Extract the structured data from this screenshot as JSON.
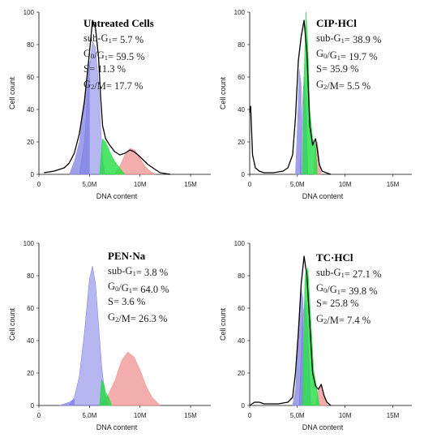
{
  "chart_data": [
    {
      "type": "area",
      "title": "Untreated Cells",
      "xlabel": "DNA content",
      "ylabel": "Cell count",
      "xlim": [
        0,
        17000000
      ],
      "ylim": [
        0,
        100
      ],
      "xticks": [
        "0",
        "5,0M",
        "10M",
        "15M"
      ],
      "yticks": [
        "0",
        "20",
        "40",
        "60",
        "80",
        "100"
      ],
      "stats": [
        {
          "pre": "sub-G",
          "sub": "1",
          "post": "= 5.7 %"
        },
        {
          "pre": "G",
          "sub": "0",
          "mid": "/G",
          "sub2": "1",
          "post": "= 59.5 %"
        },
        {
          "pre": "S= 11.3 %"
        },
        {
          "pre": "G",
          "sub": "2",
          "post": "/M= 17.7 %"
        }
      ],
      "colors": {
        "subg1": "#8e8ee6",
        "g0g1": "#7a7ae6",
        "s": "#22dd44",
        "g2m": "#f08a8a"
      },
      "series": [
        {
          "key": "histogram",
          "x": [
            0.5,
            1.5,
            2.5,
            3.0,
            3.5,
            4.0,
            4.5,
            5.0,
            5.3,
            5.6,
            5.9,
            6.1,
            6.3,
            6.6,
            7.0,
            7.5,
            8.0,
            8.5,
            9.0,
            9.4,
            9.8,
            10.3,
            10.8,
            11.5,
            12.0,
            12.5,
            13.0
          ],
          "y": [
            1,
            2,
            4,
            7,
            13,
            25,
            45,
            75,
            95,
            90,
            72,
            48,
            30,
            22,
            18,
            14,
            12,
            13,
            15,
            14,
            12,
            9,
            6,
            3,
            1,
            0.5,
            0
          ]
        },
        {
          "key": "sub-g1",
          "x": [
            3.0,
            3.5,
            4.0,
            4.5,
            4.8,
            5.0
          ],
          "y": [
            0,
            8,
            20,
            45,
            60,
            70
          ]
        },
        {
          "key": "g0g1",
          "x": [
            4.0,
            4.5,
            5.0,
            5.3,
            5.6,
            5.9,
            6.1,
            6.3,
            6.5
          ],
          "y": [
            0,
            20,
            65,
            82,
            78,
            55,
            30,
            10,
            0
          ]
        },
        {
          "key": "s-phase",
          "x": [
            6.0,
            6.3,
            6.6,
            7.0,
            7.5,
            8.0,
            8.5
          ],
          "y": [
            0,
            22,
            20,
            14,
            8,
            4,
            0
          ]
        },
        {
          "key": "g2m",
          "x": [
            7.5,
            8.0,
            8.5,
            9.0,
            9.5,
            10.0,
            10.5,
            11.0,
            11.5
          ],
          "y": [
            0,
            5,
            12,
            16,
            15,
            10,
            5,
            2,
            0
          ]
        }
      ]
    },
    {
      "type": "area",
      "title": "CIP·HCl",
      "xlabel": "DNA content",
      "ylabel": "Cell count",
      "xlim": [
        0,
        17000000
      ],
      "ylim": [
        0,
        100
      ],
      "xticks": [
        "0",
        "5,0M",
        "10M",
        "15M"
      ],
      "yticks": [
        "0",
        "20",
        "40",
        "60",
        "80",
        "100"
      ],
      "stats": [
        {
          "pre": "sub-G",
          "sub": "1",
          "post": "= 38.9 %"
        },
        {
          "pre": "G",
          "sub": "0",
          "mid": "/G",
          "sub2": "1",
          "post": "= 19.7 %"
        },
        {
          "pre": "S= 35.9 %"
        },
        {
          "pre": "G",
          "sub": "2",
          "post": "/M= 5.5 %"
        }
      ],
      "colors": {
        "subg1": "#8e8ee6",
        "g0g1": "#7a7ae6",
        "s": "#22dd44",
        "g2m": "#f08a8a"
      },
      "series": [
        {
          "key": "histogram",
          "x": [
            0,
            0.1,
            0.3,
            0.6,
            1.0,
            1.5,
            2.0,
            2.5,
            3.0,
            3.5,
            4.0,
            4.5,
            4.8,
            5.1,
            5.4,
            5.7,
            6.0,
            6.3,
            6.6,
            6.9,
            7.1,
            7.3,
            7.6,
            8.0,
            8.5
          ],
          "y": [
            38,
            42,
            12,
            4,
            2,
            1,
            1,
            1,
            1.5,
            2,
            4,
            12,
            35,
            70,
            85,
            95,
            75,
            30,
            18,
            22,
            15,
            6,
            2,
            1,
            0
          ]
        },
        {
          "key": "sub-g1",
          "x": [
            4.8,
            5.0,
            5.2,
            5.4
          ],
          "y": [
            0,
            30,
            65,
            55
          ]
        },
        {
          "key": "g0g1",
          "x": [
            5.3,
            5.5,
            5.7,
            5.9,
            6.1
          ],
          "y": [
            0,
            40,
            60,
            40,
            0
          ]
        },
        {
          "key": "s-phase",
          "x": [
            5.5,
            5.7,
            5.9,
            6.1,
            6.3,
            6.6,
            6.9,
            7.1
          ],
          "y": [
            0,
            60,
            100,
            80,
            40,
            22,
            18,
            0
          ]
        },
        {
          "key": "g2m",
          "x": [
            6.7,
            6.9,
            7.1,
            7.3,
            7.5
          ],
          "y": [
            0,
            18,
            20,
            8,
            0
          ]
        }
      ]
    },
    {
      "type": "area",
      "title": "PEN·Na",
      "xlabel": "DNA content",
      "ylabel": "Cell count",
      "xlim": [
        0,
        17000000
      ],
      "ylim": [
        0,
        100
      ],
      "xticks": [
        "0",
        "5,0M",
        "10M",
        "15M"
      ],
      "yticks": [
        "0",
        "20",
        "40",
        "60",
        "80",
        "100"
      ],
      "stats": [
        {
          "pre": "sub-G",
          "sub": "1",
          "post": "= 3.8 %"
        },
        {
          "pre": "G",
          "sub": "0",
          "mid": "/G",
          "sub2": "1",
          "post": "= 64.0 %"
        },
        {
          "pre": "S= 3.6 %"
        },
        {
          "pre": "G",
          "sub": "2",
          "post": "/M= 26.3 %"
        }
      ],
      "colors": {
        "subg1": "#8e8ee6",
        "g0g1": "#7a7ae6",
        "s": "#22dd44",
        "g2m": "#f08a8a"
      },
      "series": [
        {
          "key": "sub-g1",
          "x": [
            2.0,
            2.5,
            3.0,
            3.5
          ],
          "y": [
            0,
            1,
            2,
            4
          ]
        },
        {
          "key": "g0g1",
          "x": [
            3.0,
            3.5,
            4.0,
            4.5,
            5.0,
            5.3,
            5.6,
            5.9,
            6.2,
            6.5,
            6.8
          ],
          "y": [
            0,
            5,
            18,
            45,
            78,
            86,
            75,
            50,
            25,
            8,
            0
          ]
        },
        {
          "key": "s-phase",
          "x": [
            6.0,
            6.2,
            6.4,
            6.6,
            6.9,
            7.2
          ],
          "y": [
            0,
            16,
            14,
            8,
            5,
            0
          ]
        },
        {
          "key": "g2m",
          "x": [
            6.0,
            6.8,
            7.5,
            8.2,
            8.8,
            9.4,
            10.0,
            10.6,
            11.2,
            12.0
          ],
          "y": [
            0,
            6,
            15,
            28,
            33,
            30,
            22,
            12,
            5,
            0
          ]
        }
      ]
    },
    {
      "type": "area",
      "title": "TC·HCl",
      "xlabel": "DNA content",
      "ylabel": "Cell count",
      "xlim": [
        0,
        17000000
      ],
      "ylim": [
        0,
        100
      ],
      "xticks": [
        "0",
        "5,0M",
        "10M",
        "15M"
      ],
      "yticks": [
        "0",
        "20",
        "40",
        "60",
        "80",
        "100"
      ],
      "stats": [
        {
          "pre": "sub-G",
          "sub": "1",
          "post": "= 27.1 %"
        },
        {
          "pre": "G",
          "sub": "0",
          "mid": "/G",
          "sub2": "1",
          "post": "= 39.8 %"
        },
        {
          "pre": "S= 25.8 %"
        },
        {
          "pre": "G",
          "sub": "2",
          "post": "/M= 7.4 %"
        }
      ],
      "colors": {
        "subg1": "#8e8ee6",
        "g0g1": "#7a7ae6",
        "s": "#22dd44",
        "g2m": "#f08a8a"
      },
      "series": [
        {
          "key": "histogram",
          "x": [
            0,
            0.5,
            1.0,
            1.5,
            2.0,
            2.5,
            3.0,
            3.5,
            4.0,
            4.5,
            4.8,
            5.1,
            5.4,
            5.7,
            6.0,
            6.3,
            6.6,
            6.9,
            7.2,
            7.5,
            7.8,
            8.1,
            8.5
          ],
          "y": [
            0,
            2,
            2,
            1,
            1,
            1,
            1,
            1.5,
            2,
            5,
            20,
            45,
            75,
            92,
            80,
            50,
            20,
            12,
            10,
            13,
            6,
            2,
            0
          ]
        },
        {
          "key": "sub-g1",
          "x": [
            4.5,
            4.8,
            5.1,
            5.4,
            5.6
          ],
          "y": [
            0,
            10,
            40,
            72,
            65
          ]
        },
        {
          "key": "g0g1",
          "x": [
            5.2,
            5.5,
            5.8,
            6.1,
            6.4
          ],
          "y": [
            0,
            50,
            65,
            45,
            0
          ]
        },
        {
          "key": "s-phase",
          "x": [
            5.5,
            5.8,
            6.1,
            6.4,
            6.7,
            7.0,
            7.3
          ],
          "y": [
            0,
            80,
            85,
            55,
            22,
            12,
            0
          ]
        },
        {
          "key": "g2m",
          "x": [
            6.9,
            7.2,
            7.5,
            7.8,
            8.1
          ],
          "y": [
            0,
            10,
            13,
            6,
            0
          ]
        }
      ]
    }
  ]
}
